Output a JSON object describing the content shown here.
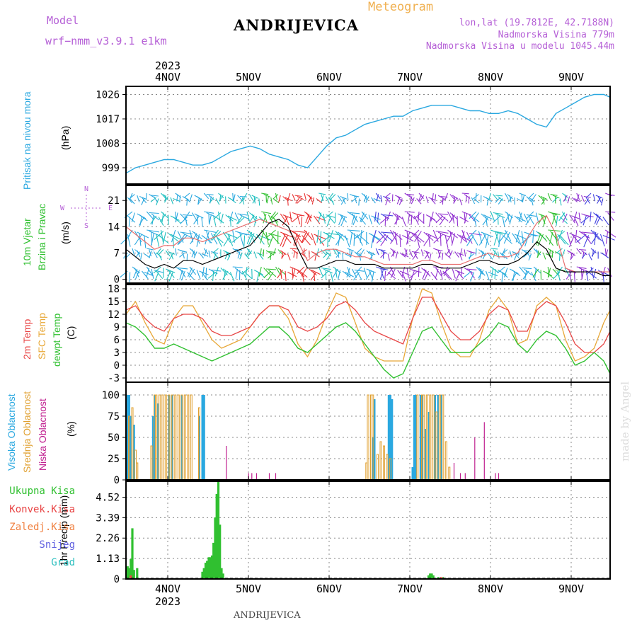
{
  "header": {
    "model_label": "Model",
    "model_name": "wrf−nmm_v3.9.1  e1km",
    "title": "ANDRIJEVICA",
    "meteogram": "Meteogram",
    "lonlat": "lon,lat (19.7812E, 42.7188N)",
    "elev": "Nadmorska Visina 779m",
    "elev_model": "Nadmorska Visina u modelu 1045.44m"
  },
  "footer_title": "ANDRIJEVICA",
  "credit": "made by Angel",
  "year_top": "2023",
  "year_bottom": "2023",
  "day_labels": [
    "4NOV",
    "5NOV",
    "6NOV",
    "7NOV",
    "8NOV",
    "9NOV"
  ],
  "panel_labels": {
    "pressure": [
      "Pritisak na nivou mora",
      "(hPa)"
    ],
    "wind": [
      "10m Vjetar",
      "Brzina i Pravac",
      "(m/s)"
    ],
    "temp": [
      "2m Temp",
      "SFC Temp",
      "dewpt Temp",
      "(C)"
    ],
    "cloud": [
      "Visoka Oblacnost",
      "Srednja Oblacnost",
      "Niska Oblacnost",
      "(%)"
    ],
    "precip": [
      "1hr Precip (mm)"
    ],
    "compass": {
      "n": "N",
      "s": "S",
      "e": "E",
      "w": "W"
    }
  },
  "precip_legend": [
    "Ukupna Kisa",
    "Konvek.Kisa",
    "Zaledj.Kisa",
    "Snijeg",
    "Grad"
  ],
  "colors": {
    "pressure": "#2aa8e0",
    "temp": "#e84545",
    "sfc": "#e8a838",
    "dew": "#30c030",
    "cloud_high": "#2aa8e0",
    "cloud_mid": "#e0a030",
    "cloud_low": "#c02090",
    "rain": "#30c030",
    "purple": "#b55fd6"
  },
  "chart_data": [
    {
      "type": "line",
      "name": "pressure",
      "ylim": [
        993,
        1029
      ],
      "yticks": [
        999,
        1008,
        1017,
        1026
      ],
      "x": [
        0,
        3,
        6,
        12,
        18,
        24,
        30,
        36,
        42,
        48,
        54,
        60,
        66,
        72,
        78,
        84,
        90,
        96,
        102,
        108,
        114,
        120,
        126,
        132,
        138,
        144,
        150,
        156,
        162,
        168,
        174,
        180,
        186,
        192,
        198,
        204,
        210,
        216,
        222,
        228,
        234,
        240,
        246,
        252,
        258,
        264,
        270,
        276,
        282,
        288,
        294,
        300,
        304
      ],
      "series": [
        {
          "name": "pressure",
          "values": [
            997,
            998,
            999,
            1000,
            1001,
            1002,
            1002,
            1001,
            1000,
            1000,
            1001,
            1003,
            1005,
            1006,
            1007,
            1006,
            1004,
            1003,
            1002,
            1000,
            999,
            1003,
            1007,
            1010,
            1011,
            1013,
            1015,
            1016,
            1017,
            1018,
            1018,
            1020,
            1021,
            1022,
            1022,
            1022,
            1021,
            1020,
            1020,
            1019,
            1019,
            1020,
            1019,
            1017,
            1015,
            1014,
            1019,
            1021,
            1023,
            1025,
            1026,
            1026,
            1025
          ]
        }
      ]
    },
    {
      "type": "line",
      "name": "wind",
      "ylim": [
        -1,
        25
      ],
      "yticks": [
        0,
        7,
        14,
        21
      ],
      "x": [
        0,
        6,
        12,
        18,
        24,
        30,
        36,
        42,
        48,
        54,
        60,
        66,
        72,
        78,
        84,
        90,
        96,
        102,
        108,
        114,
        120,
        126,
        132,
        138,
        144,
        150,
        156,
        162,
        168,
        174,
        180,
        186,
        192,
        198,
        204,
        210,
        216,
        222,
        228,
        234,
        240,
        246,
        252,
        258,
        264,
        270,
        276,
        282,
        288,
        294,
        300,
        304
      ],
      "series": [
        {
          "name": "speed",
          "values": [
            8,
            6,
            4,
            3,
            4,
            3,
            5,
            5,
            4,
            5,
            6,
            7,
            8,
            9,
            12,
            15,
            16,
            14,
            8,
            3,
            3,
            4,
            5,
            5,
            4,
            4,
            4,
            3,
            3,
            3,
            3,
            4,
            4,
            3,
            3,
            3,
            4,
            5,
            5,
            4,
            4,
            5,
            7,
            10,
            8,
            3,
            2,
            2,
            2,
            2,
            1,
            1
          ]
        },
        {
          "name": "gust",
          "values": [
            14,
            12,
            10,
            8,
            9,
            9,
            11,
            11,
            10,
            11,
            12,
            13,
            14,
            15,
            16,
            15,
            14,
            13,
            10,
            5,
            7,
            8,
            8,
            7,
            6,
            6,
            5,
            4,
            4,
            4,
            4,
            5,
            5,
            4,
            4,
            4,
            5,
            6,
            7,
            6,
            6,
            7,
            11,
            15,
            17,
            12,
            3,
            2,
            2,
            2,
            2,
            2
          ]
        }
      ]
    },
    {
      "type": "line",
      "name": "temperature",
      "ylim": [
        -4,
        19
      ],
      "yticks": [
        -3,
        0,
        3,
        6,
        9,
        12,
        15,
        18
      ],
      "x": [
        0,
        6,
        12,
        18,
        24,
        30,
        36,
        42,
        48,
        54,
        60,
        66,
        72,
        78,
        84,
        90,
        96,
        102,
        108,
        114,
        120,
        126,
        132,
        138,
        144,
        150,
        156,
        162,
        168,
        174,
        180,
        186,
        192,
        198,
        204,
        210,
        216,
        222,
        228,
        234,
        240,
        246,
        252,
        258,
        264,
        270,
        276,
        282,
        288,
        294,
        300,
        304
      ],
      "series": [
        {
          "name": "2m Temp",
          "values": [
            13,
            14,
            11,
            9,
            8,
            11,
            12,
            12,
            11,
            8,
            7,
            7,
            8,
            9,
            12,
            14,
            14,
            13,
            9,
            8,
            9,
            11,
            14,
            15,
            13,
            10,
            8,
            7,
            6,
            5,
            11,
            16,
            16,
            12,
            8,
            6,
            6,
            8,
            12,
            14,
            13,
            8,
            8,
            13,
            15,
            14,
            10,
            5,
            3,
            3,
            5,
            8
          ]
        },
        {
          "name": "SFC Temp",
          "values": [
            12,
            15,
            10,
            6,
            5,
            11,
            14,
            14,
            10,
            6,
            4,
            5,
            6,
            9,
            12,
            14,
            14,
            11,
            5,
            2,
            6,
            12,
            17,
            16,
            10,
            4,
            2,
            1,
            1,
            1,
            11,
            18,
            17,
            10,
            4,
            2,
            2,
            6,
            13,
            16,
            13,
            5,
            6,
            14,
            16,
            14,
            6,
            1,
            2,
            4,
            10,
            13
          ]
        },
        {
          "name": "dewpt Temp",
          "values": [
            10,
            9,
            7,
            4,
            4,
            5,
            4,
            3,
            2,
            1,
            2,
            3,
            4,
            5,
            7,
            9,
            9,
            7,
            4,
            3,
            5,
            7,
            9,
            10,
            8,
            5,
            2,
            -1,
            -3,
            -2,
            3,
            8,
            9,
            6,
            3,
            3,
            3,
            5,
            7,
            10,
            9,
            5,
            3,
            6,
            8,
            7,
            4,
            0,
            1,
            3,
            1,
            -2
          ]
        }
      ]
    },
    {
      "type": "bar",
      "name": "cloud",
      "ylim": [
        0,
        100
      ],
      "yticks": [
        0,
        25,
        50,
        75,
        100
      ],
      "series": [
        {
          "name": "Visoka Oblacnost",
          "points": [
            [
              1,
              100
            ],
            [
              2,
              100
            ],
            [
              3,
              75
            ],
            [
              5,
              65
            ],
            [
              17,
              75
            ],
            [
              18,
              100
            ],
            [
              20,
              90
            ],
            [
              27,
              100
            ],
            [
              29,
              100
            ],
            [
              35,
              100
            ],
            [
              46,
              75
            ],
            [
              49,
              100
            ],
            [
              48,
              100
            ],
            [
              155,
              50
            ],
            [
              156,
              95
            ],
            [
              165,
              100
            ],
            [
              166,
              100
            ],
            [
              167,
              95
            ],
            [
              180,
              15
            ],
            [
              181,
              100
            ],
            [
              182,
              100
            ],
            [
              185,
              100
            ],
            [
              186,
              100
            ],
            [
              188,
              60
            ],
            [
              190,
              80
            ],
            [
              194,
              100
            ],
            [
              196,
              100
            ],
            [
              198,
              100
            ]
          ]
        },
        {
          "name": "Srednja Oblacnost",
          "points": [
            [
              2,
              75
            ],
            [
              4,
              85
            ],
            [
              6,
              35
            ],
            [
              7,
              20
            ],
            [
              16,
              40
            ],
            [
              18,
              100
            ],
            [
              19,
              100
            ],
            [
              21,
              100
            ],
            [
              23,
              100
            ],
            [
              25,
              100
            ],
            [
              27,
              100
            ],
            [
              29,
              100
            ],
            [
              31,
              100
            ],
            [
              33,
              100
            ],
            [
              35,
              100
            ],
            [
              37,
              100
            ],
            [
              39,
              100
            ],
            [
              41,
              100
            ],
            [
              46,
              85
            ],
            [
              151,
              20
            ],
            [
              152,
              100
            ],
            [
              154,
              100
            ],
            [
              155,
              100
            ],
            [
              158,
              30
            ],
            [
              160,
              45
            ],
            [
              162,
              40
            ],
            [
              164,
              30
            ],
            [
              166,
              25
            ],
            [
              183,
              100
            ],
            [
              186,
              100
            ],
            [
              187,
              100
            ],
            [
              189,
              100
            ],
            [
              191,
              100
            ],
            [
              193,
              100
            ],
            [
              195,
              80
            ],
            [
              197,
              100
            ],
            [
              199,
              100
            ],
            [
              201,
              45
            ],
            [
              203,
              15
            ]
          ]
        },
        {
          "name": "Niska Oblacnost",
          "points": [
            [
              63,
              40
            ],
            [
              77,
              8
            ],
            [
              79,
              8
            ],
            [
              82,
              8
            ],
            [
              90,
              8
            ],
            [
              94,
              8
            ],
            [
              206,
              20
            ],
            [
              210,
              8
            ],
            [
              213,
              8
            ],
            [
              219,
              50
            ],
            [
              225,
              68
            ],
            [
              232,
              8
            ],
            [
              234,
              8
            ]
          ]
        }
      ]
    },
    {
      "type": "bar",
      "name": "precip",
      "ylim": [
        0,
        5.4
      ],
      "yticks": [
        0,
        1.13,
        2.26,
        3.39,
        4.52
      ],
      "series": [
        {
          "name": "Ukupna Kisa",
          "points": [
            [
              1,
              0.7
            ],
            [
              2,
              0.6
            ],
            [
              3,
              1.1
            ],
            [
              4,
              2.8
            ],
            [
              5,
              0.5
            ],
            [
              7,
              0.6
            ],
            [
              48,
              0.4
            ],
            [
              49,
              0.6
            ],
            [
              50,
              0.9
            ],
            [
              51,
              1.0
            ],
            [
              52,
              1.2
            ],
            [
              53,
              1.2
            ],
            [
              54,
              1.3
            ],
            [
              55,
              2.0
            ],
            [
              56,
              3.4
            ],
            [
              57,
              4.7
            ],
            [
              58,
              5.4
            ],
            [
              59,
              3.0
            ],
            [
              60,
              0.6
            ],
            [
              61,
              0.3
            ],
            [
              190,
              0.2
            ],
            [
              191,
              0.3
            ],
            [
              192,
              0.3
            ],
            [
              193,
              0.2
            ],
            [
              196,
              0.1
            ],
            [
              199,
              0.1
            ]
          ]
        },
        {
          "name": "Konvek.Kisa",
          "points": [
            [
              3,
              0.2
            ],
            [
              198,
              0.1
            ]
          ]
        }
      ]
    }
  ]
}
